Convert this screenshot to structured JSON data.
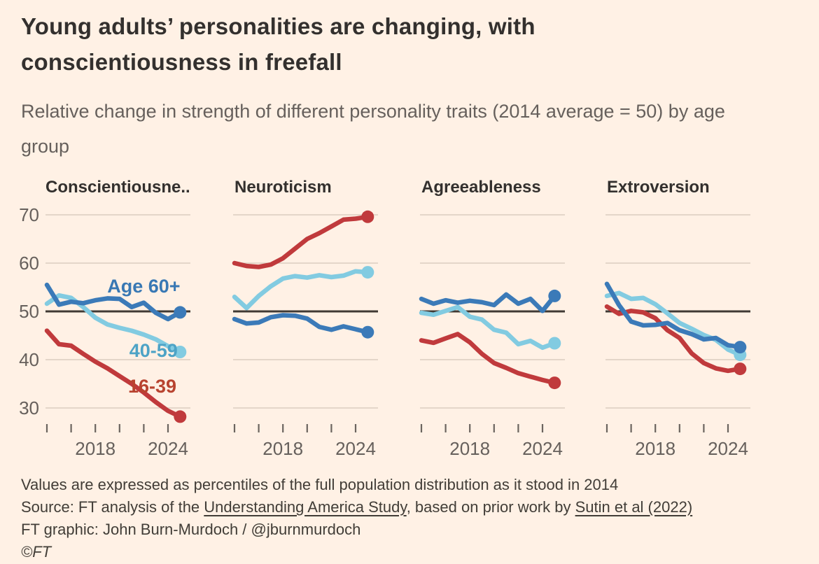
{
  "header": {
    "title": "Young adults’ personalities are changing, with conscientiousness in freefall",
    "subtitle": "Relative change in strength of different personality traits (2014 average = 50) by age group"
  },
  "colors": {
    "background": "#fff1e5",
    "age_16_39": "#c03a3c",
    "age_40_59": "#82cbe1",
    "age_60_plus": "#3b7ab8",
    "reference_line": "#403a34",
    "gridline": "#dccec0",
    "axis_text": "#66605c",
    "title_text": "#33302e"
  },
  "chart_data": [
    {
      "type": "line",
      "title": "Conscientiousne...",
      "xlabel": "",
      "ylabel": "",
      "ylim": [
        26,
        72
      ],
      "gridlines": [
        30,
        40,
        50,
        60,
        70
      ],
      "ref_line": 50,
      "x": [
        2014,
        2015,
        2016,
        2017,
        2018,
        2019,
        2020,
        2021,
        2022,
        2023,
        2024,
        2025
      ],
      "x_ticks": [
        2014,
        2016,
        2018,
        2020,
        2022,
        2024
      ],
      "x_tick_labels": [
        {
          "year": 2018,
          "label": "2018"
        },
        {
          "year": 2024,
          "label": "2024"
        }
      ],
      "series": [
        {
          "name": "40-59",
          "color": "#82cbe1",
          "values": [
            51.6,
            53.3,
            52.8,
            50.9,
            48.7,
            47.3,
            46.6,
            46.0,
            45.2,
            44.2,
            42.8,
            41.6
          ]
        },
        {
          "name": "16-39",
          "color": "#c03a3c",
          "values": [
            46.0,
            43.2,
            42.9,
            41.2,
            39.6,
            38.2,
            36.6,
            35.0,
            33.2,
            31.2,
            29.4,
            28.2
          ]
        },
        {
          "name": "Age 60+",
          "color": "#3b7ab8",
          "values": [
            55.5,
            51.4,
            52.0,
            51.7,
            52.3,
            52.7,
            52.6,
            50.9,
            51.8,
            49.7,
            48.4,
            49.8
          ]
        }
      ],
      "annotations": [
        {
          "text": "Age 60+",
          "year": 2022.0,
          "value": 55.2,
          "color": "#3878b4"
        },
        {
          "text": "40-59",
          "year": 2022.8,
          "value": 41.9,
          "color": "#4da3c6"
        },
        {
          "text": "16-39",
          "year": 2022.7,
          "value": 34.5,
          "color": "#b8432f"
        }
      ]
    },
    {
      "type": "line",
      "title": "Neuroticism",
      "xlabel": "",
      "ylabel": "",
      "ylim": [
        26,
        72
      ],
      "gridlines": [
        30,
        40,
        50,
        60,
        70
      ],
      "ref_line": 50,
      "x": [
        2014,
        2015,
        2016,
        2017,
        2018,
        2019,
        2020,
        2021,
        2022,
        2023,
        2024,
        2025
      ],
      "x_ticks": [
        2014,
        2016,
        2018,
        2020,
        2022,
        2024
      ],
      "x_tick_labels": [
        {
          "year": 2018,
          "label": "2018"
        },
        {
          "year": 2024,
          "label": "2024"
        }
      ],
      "series": [
        {
          "name": "40-59",
          "color": "#82cbe1",
          "values": [
            53.0,
            50.7,
            53.2,
            55.2,
            56.8,
            57.3,
            57.0,
            57.5,
            57.1,
            57.4,
            58.3,
            58.1
          ]
        },
        {
          "name": "16-39",
          "color": "#c03a3c",
          "values": [
            60.0,
            59.4,
            59.2,
            59.7,
            61.0,
            63.0,
            65.0,
            66.2,
            67.6,
            69.0,
            69.2,
            69.6
          ]
        },
        {
          "name": "Age 60+",
          "color": "#3b7ab8",
          "values": [
            48.4,
            47.5,
            47.7,
            48.8,
            49.2,
            49.1,
            48.5,
            46.8,
            46.2,
            46.9,
            46.3,
            45.7
          ]
        }
      ],
      "annotations": []
    },
    {
      "type": "line",
      "title": "Agreeableness",
      "xlabel": "",
      "ylabel": "",
      "ylim": [
        26,
        72
      ],
      "gridlines": [
        30,
        40,
        50,
        60,
        70
      ],
      "ref_line": 50,
      "x": [
        2014,
        2015,
        2016,
        2017,
        2018,
        2019,
        2020,
        2021,
        2022,
        2023,
        2024,
        2025
      ],
      "x_ticks": [
        2014,
        2016,
        2018,
        2020,
        2022,
        2024
      ],
      "x_tick_labels": [
        {
          "year": 2018,
          "label": "2018"
        },
        {
          "year": 2024,
          "label": "2024"
        }
      ],
      "series": [
        {
          "name": "40-59",
          "color": "#82cbe1",
          "values": [
            49.7,
            49.3,
            50.1,
            50.9,
            48.9,
            48.3,
            46.2,
            45.6,
            43.2,
            43.9,
            42.5,
            43.4
          ]
        },
        {
          "name": "16-39",
          "color": "#c03a3c",
          "values": [
            44.0,
            43.5,
            44.4,
            45.3,
            43.6,
            41.2,
            39.3,
            38.3,
            37.2,
            36.5,
            35.8,
            35.2
          ]
        },
        {
          "name": "Age 60+",
          "color": "#3b7ab8",
          "values": [
            52.6,
            51.6,
            52.3,
            51.8,
            52.2,
            51.9,
            51.3,
            53.5,
            51.6,
            52.6,
            50.1,
            53.2
          ]
        }
      ],
      "annotations": []
    },
    {
      "type": "line",
      "title": "Extroversion",
      "xlabel": "",
      "ylabel": "",
      "ylim": [
        26,
        72
      ],
      "gridlines": [
        30,
        40,
        50,
        60,
        70
      ],
      "ref_line": 50,
      "x": [
        2014,
        2015,
        2016,
        2017,
        2018,
        2019,
        2020,
        2021,
        2022,
        2023,
        2024,
        2025
      ],
      "x_ticks": [
        2014,
        2016,
        2018,
        2020,
        2022,
        2024
      ],
      "x_tick_labels": [
        {
          "year": 2018,
          "label": "2018"
        },
        {
          "year": 2024,
          "label": "2024"
        }
      ],
      "series": [
        {
          "name": "40-59",
          "color": "#82cbe1",
          "values": [
            53.2,
            53.8,
            52.6,
            52.8,
            51.5,
            49.6,
            47.6,
            46.4,
            45.1,
            44.1,
            42.1,
            41.0
          ]
        },
        {
          "name": "16-39",
          "color": "#c03a3c",
          "values": [
            51.0,
            49.5,
            50.1,
            49.8,
            48.6,
            46.1,
            44.5,
            41.3,
            39.3,
            38.2,
            37.7,
            38.1
          ]
        },
        {
          "name": "Age 60+",
          "color": "#3b7ab8",
          "values": [
            55.7,
            51.3,
            47.9,
            47.1,
            47.2,
            47.6,
            46.1,
            45.3,
            44.2,
            44.5,
            43.0,
            42.6
          ]
        }
      ],
      "annotations": []
    }
  ],
  "footer": {
    "note": "Values are expressed as percentiles of the full population distribution as it stood in 2014",
    "source_prefix": "Source: FT analysis of the ",
    "source_link1": "Understanding America Study",
    "source_mid": ", based on prior work by ",
    "source_link2": "Sutin et al (2022)",
    "credit": "FT graphic: John Burn-Murdoch / @jburnmurdoch",
    "copyright": "©FT"
  }
}
